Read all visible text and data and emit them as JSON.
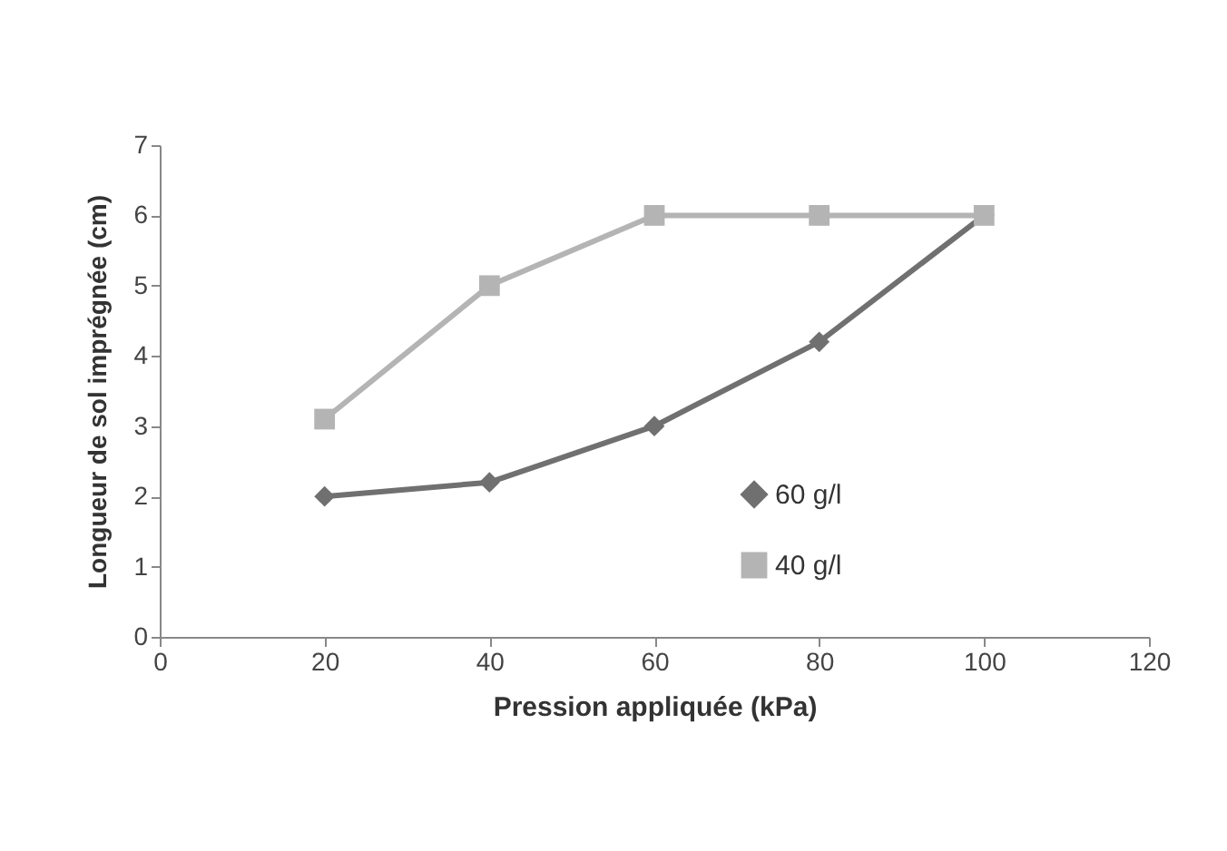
{
  "chart_data": {
    "type": "line",
    "xlabel": "Pression appliquée (kPa)",
    "ylabel": "Longueur de sol imprégnée (cm)",
    "x": [
      20,
      40,
      60,
      80,
      100
    ],
    "series": [
      {
        "name": "60 g/l",
        "color": "#707070",
        "marker": "diamond",
        "values": [
          2,
          2.2,
          3,
          4.2,
          6
        ]
      },
      {
        "name": "40 g/l",
        "color": "#b4b4b4",
        "marker": "square",
        "values": [
          3.1,
          5,
          6,
          6,
          6
        ]
      }
    ],
    "xlim": [
      0,
      120
    ],
    "xticks": [
      0,
      20,
      40,
      60,
      80,
      100,
      120
    ],
    "ylim": [
      0,
      7
    ],
    "yticks": [
      0,
      1,
      2,
      3,
      4,
      5,
      6,
      7
    ],
    "legend": "bottom right",
    "grid": false
  }
}
